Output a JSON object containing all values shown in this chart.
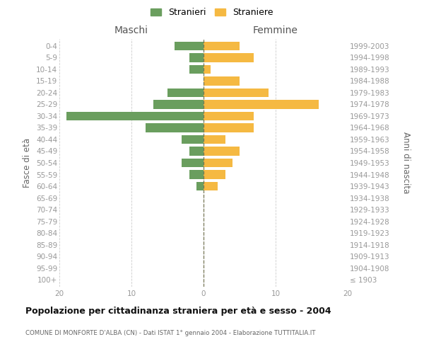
{
  "age_groups": [
    "100+",
    "95-99",
    "90-94",
    "85-89",
    "80-84",
    "75-79",
    "70-74",
    "65-69",
    "60-64",
    "55-59",
    "50-54",
    "45-49",
    "40-44",
    "35-39",
    "30-34",
    "25-29",
    "20-24",
    "15-19",
    "10-14",
    "5-9",
    "0-4"
  ],
  "birth_years": [
    "≤ 1903",
    "1904-1908",
    "1909-1913",
    "1914-1918",
    "1919-1923",
    "1924-1928",
    "1929-1933",
    "1934-1938",
    "1939-1943",
    "1944-1948",
    "1949-1953",
    "1954-1958",
    "1959-1963",
    "1964-1968",
    "1969-1973",
    "1974-1978",
    "1979-1983",
    "1984-1988",
    "1989-1993",
    "1994-1998",
    "1999-2003"
  ],
  "maschi": [
    0,
    0,
    0,
    0,
    0,
    0,
    0,
    0,
    1,
    2,
    3,
    2,
    3,
    8,
    19,
    7,
    5,
    0,
    2,
    2,
    4
  ],
  "femmine": [
    0,
    0,
    0,
    0,
    0,
    0,
    0,
    0,
    2,
    3,
    4,
    5,
    3,
    7,
    7,
    16,
    9,
    5,
    1,
    7,
    5
  ],
  "maschi_color": "#6a9e5e",
  "femmine_color": "#f5b942",
  "xlim": 20,
  "ylabel_left": "Fasce di età",
  "ylabel_right": "Anni di nascita",
  "header_left": "Maschi",
  "header_right": "Femmine",
  "legend_maschi": "Stranieri",
  "legend_femmine": "Straniere",
  "title": "Popolazione per cittadinanza straniera per età e sesso - 2004",
  "subtitle": "COMUNE DI MONFORTE D'ALBA (CN) - Dati ISTAT 1° gennaio 2004 - Elaborazione TUTTITALIA.IT",
  "bg_color": "#ffffff",
  "grid_color": "#cccccc",
  "bar_height": 0.75
}
